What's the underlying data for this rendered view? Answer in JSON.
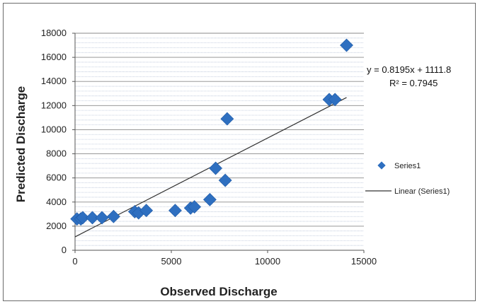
{
  "chart_data": {
    "type": "scatter",
    "title": "",
    "xlabel": "Observed Discharge",
    "ylabel": "Predicted Discharge",
    "xlim": [
      0,
      15000
    ],
    "ylim": [
      0,
      18000
    ],
    "x_ticks": [
      "0",
      "5000",
      "10000",
      "15000"
    ],
    "y_ticks": [
      "0",
      "2000",
      "4000",
      "6000",
      "8000",
      "10000",
      "12000",
      "14000",
      "16000",
      "18000"
    ],
    "grid": true,
    "legend_position": "right",
    "series": [
      {
        "name": "Series1",
        "color": "#2e6fc0",
        "marker": "diamond",
        "x": [
          100,
          300,
          400,
          900,
          1400,
          2000,
          3100,
          3300,
          3700,
          5200,
          6000,
          6200,
          7000,
          7300,
          7800,
          7900,
          13200,
          13500,
          14100
        ],
        "y": [
          2600,
          2600,
          2700,
          2700,
          2700,
          2800,
          3200,
          3100,
          3300,
          3300,
          3500,
          3600,
          4200,
          6800,
          5800,
          10900,
          12500,
          12500,
          17000
        ]
      }
    ],
    "trendline": {
      "name": "Linear (Series1)",
      "color": "#333333",
      "slope": 0.8195,
      "intercept": 1111.8,
      "x_range": [
        0,
        14100
      ],
      "equation_label": "y = 0.8195x + 1111.8",
      "r2_label": "R² = 0.7945"
    }
  }
}
